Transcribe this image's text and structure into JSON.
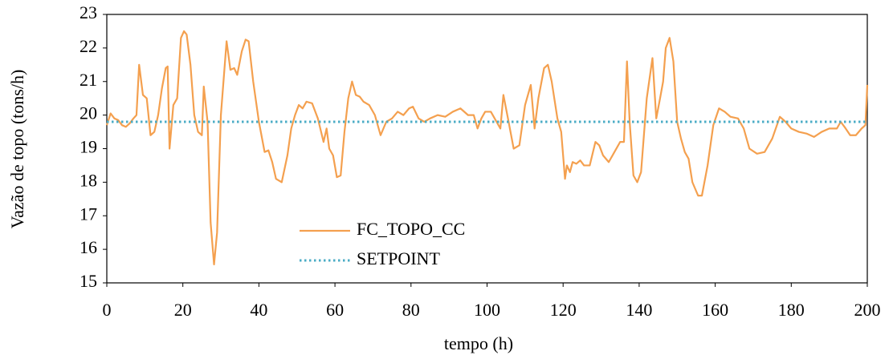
{
  "chart_data": {
    "type": "line",
    "xlabel": "tempo (h)",
    "ylabel": "Vazão de topo (tons/h)",
    "xlim": [
      0,
      200
    ],
    "xticks": [
      0,
      20,
      40,
      60,
      80,
      100,
      120,
      140,
      160,
      180,
      200
    ],
    "ylim": [
      15,
      23
    ],
    "yticks": [
      15,
      16,
      17,
      18,
      19,
      20,
      21,
      22,
      23
    ],
    "legend": "lower left",
    "series": [
      {
        "name": "FC_TOPO_CC",
        "color": "#f4a04f",
        "style": "solid",
        "x": [
          0,
          1,
          2,
          3,
          4,
          5,
          6,
          7,
          7.8,
          8.5,
          9.5,
          10.5,
          11.5,
          12.5,
          13.5,
          14.5,
          15.5,
          16,
          16.5,
          17.5,
          18.5,
          19.5,
          20.3,
          21,
          22,
          23,
          24,
          25,
          25.5,
          26.5,
          27.3,
          28.2,
          29,
          30,
          31.5,
          32.5,
          33.5,
          34.3,
          35.5,
          36.5,
          37.3,
          38.5,
          40,
          41.5,
          42.5,
          43.5,
          44.5,
          46,
          47.5,
          48.5,
          49.5,
          50.5,
          51.5,
          52.5,
          54,
          55.5,
          57,
          57.8,
          58.5,
          59.5,
          60.5,
          61.5,
          62.5,
          63.5,
          64.5,
          65.5,
          66.5,
          67.5,
          69,
          70.5,
          72,
          73.5,
          75,
          76.5,
          78,
          79.5,
          80.5,
          82,
          83.5,
          85,
          87,
          89,
          91,
          93,
          95,
          96.5,
          97.5,
          98.5,
          99.5,
          101,
          102.5,
          103.5,
          104.3,
          105.5,
          107,
          108.5,
          110,
          111.5,
          112.5,
          113.5,
          115,
          116,
          117,
          118.5,
          119.5,
          120.5,
          121,
          121.8,
          122.5,
          123.5,
          124.5,
          125.5,
          127,
          128.5,
          129.5,
          130.5,
          132,
          133.5,
          135,
          136,
          136.8,
          137.5,
          138.5,
          139.5,
          140.5,
          142,
          143.5,
          144.5,
          145.5,
          146.3,
          147,
          148,
          149,
          150,
          151,
          152,
          153,
          154,
          155.5,
          156.5,
          158,
          159.5,
          161,
          162.5,
          164,
          166,
          167.5,
          169,
          171,
          173,
          175,
          177,
          178.5,
          180,
          182,
          184,
          186,
          188,
          190,
          192,
          193,
          194,
          195.5,
          197,
          198.5,
          199.5,
          200
        ],
        "values": [
          19.7,
          20.05,
          19.9,
          19.85,
          19.7,
          19.65,
          19.75,
          19.9,
          20.0,
          21.5,
          20.6,
          20.5,
          19.4,
          19.5,
          20.0,
          20.8,
          21.4,
          21.45,
          19.0,
          20.3,
          20.5,
          22.3,
          22.5,
          22.4,
          21.5,
          20.0,
          19.5,
          19.4,
          20.85,
          19.8,
          16.8,
          15.55,
          16.5,
          20.0,
          22.2,
          21.35,
          21.4,
          21.2,
          21.9,
          22.25,
          22.2,
          21.0,
          19.8,
          18.9,
          18.95,
          18.6,
          18.1,
          18.0,
          18.8,
          19.6,
          20.0,
          20.3,
          20.2,
          20.4,
          20.35,
          19.9,
          19.2,
          19.6,
          19.0,
          18.8,
          18.15,
          18.2,
          19.5,
          20.5,
          21.0,
          20.6,
          20.55,
          20.4,
          20.3,
          20.0,
          19.4,
          19.8,
          19.9,
          20.1,
          20.0,
          20.2,
          20.25,
          19.9,
          19.8,
          19.9,
          20.0,
          19.95,
          20.1,
          20.2,
          20.0,
          20.0,
          19.6,
          19.9,
          20.1,
          20.1,
          19.8,
          19.6,
          20.6,
          19.9,
          19.0,
          19.1,
          20.3,
          20.9,
          19.6,
          20.5,
          21.4,
          21.5,
          21.0,
          19.9,
          19.5,
          18.1,
          18.5,
          18.3,
          18.6,
          18.55,
          18.65,
          18.5,
          18.5,
          19.2,
          19.1,
          18.8,
          18.6,
          18.9,
          19.2,
          19.2,
          21.6,
          19.8,
          18.2,
          18.0,
          18.3,
          20.5,
          21.7,
          19.9,
          20.5,
          21.0,
          22.0,
          22.3,
          21.6,
          19.8,
          19.3,
          18.9,
          18.7,
          18.0,
          17.6,
          17.6,
          18.5,
          19.7,
          20.2,
          20.1,
          19.95,
          19.9,
          19.6,
          19.0,
          18.85,
          18.9,
          19.3,
          19.95,
          19.8,
          19.6,
          19.5,
          19.45,
          19.35,
          19.5,
          19.6,
          19.6,
          19.8,
          19.65,
          19.4,
          19.4,
          19.6,
          19.7,
          20.9
        ]
      },
      {
        "name": "SETPOINT",
        "color": "#4bacc6",
        "style": "dotted",
        "x": [
          0,
          200
        ],
        "values": [
          19.8,
          19.8
        ]
      }
    ]
  }
}
